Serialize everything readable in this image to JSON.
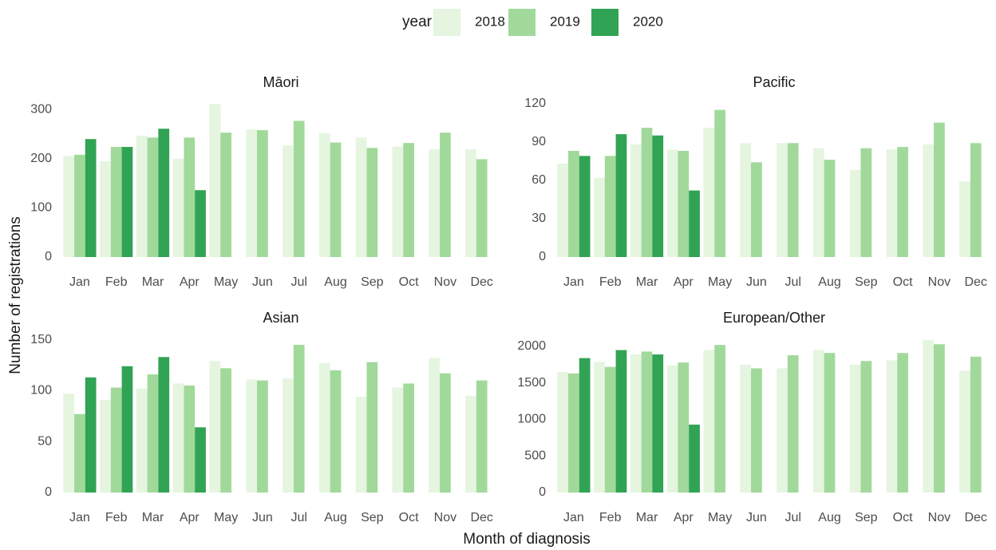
{
  "legend_title": "year",
  "x_label": "Month of diagnosis",
  "y_label": "Number of registrations",
  "chart_data": [
    {
      "type": "bar",
      "title": "Māori",
      "grid": false,
      "categories": [
        "Jan",
        "Feb",
        "Mar",
        "Apr",
        "May",
        "Jun",
        "Jul",
        "Aug",
        "Sep",
        "Oct",
        "Nov",
        "Dec"
      ],
      "series": [
        {
          "name": "2018",
          "color": "#e5f5e0",
          "values": [
            205,
            195,
            247,
            200,
            311,
            260,
            227,
            252,
            243,
            225,
            219,
            219
          ]
        },
        {
          "name": "2019",
          "color": "#a1d99b",
          "values": [
            208,
            224,
            243,
            243,
            253,
            258,
            277,
            233,
            222,
            232,
            253,
            199
          ]
        },
        {
          "name": "2020",
          "color": "#31a354",
          "values": [
            240,
            224,
            261,
            136,
            null,
            null,
            null,
            null,
            null,
            null,
            null,
            null
          ]
        }
      ],
      "ylim": [
        0,
        315
      ],
      "yticks": [
        0,
        100,
        200,
        300
      ]
    },
    {
      "type": "bar",
      "title": "Pacific",
      "grid": false,
      "categories": [
        "Jan",
        "Feb",
        "Mar",
        "Apr",
        "May",
        "Jun",
        "Jul",
        "Aug",
        "Sep",
        "Oct",
        "Nov",
        "Dec"
      ],
      "series": [
        {
          "name": "2018",
          "color": "#e5f5e0",
          "values": [
            73,
            62,
            88,
            84,
            101,
            89,
            89,
            85,
            68,
            84,
            88,
            59
          ]
        },
        {
          "name": "2019",
          "color": "#a1d99b",
          "values": [
            83,
            79,
            101,
            83,
            115,
            74,
            89,
            76,
            85,
            86,
            105,
            89
          ]
        },
        {
          "name": "2020",
          "color": "#31a354",
          "values": [
            79,
            96,
            95,
            52,
            null,
            null,
            null,
            null,
            null,
            null,
            null,
            null
          ]
        }
      ],
      "ylim": [
        0,
        121
      ],
      "yticks": [
        0,
        30,
        60,
        90,
        120
      ]
    },
    {
      "type": "bar",
      "title": "Asian",
      "grid": false,
      "categories": [
        "Jan",
        "Feb",
        "Mar",
        "Apr",
        "May",
        "Jun",
        "Jul",
        "Aug",
        "Sep",
        "Oct",
        "Nov",
        "Dec"
      ],
      "series": [
        {
          "name": "2018",
          "color": "#e5f5e0",
          "values": [
            97,
            91,
            102,
            107,
            129,
            111,
            112,
            127,
            94,
            103,
            132,
            95
          ]
        },
        {
          "name": "2019",
          "color": "#a1d99b",
          "values": [
            77,
            103,
            116,
            105,
            122,
            110,
            145,
            120,
            128,
            107,
            117,
            110
          ]
        },
        {
          "name": "2020",
          "color": "#31a354",
          "values": [
            113,
            124,
            133,
            64,
            null,
            null,
            null,
            null,
            null,
            null,
            null,
            null
          ]
        }
      ],
      "ylim": [
        0,
        152
      ],
      "yticks": [
        0,
        50,
        100,
        150
      ]
    },
    {
      "type": "bar",
      "title": "European/Other",
      "grid": false,
      "categories": [
        "Jan",
        "Feb",
        "Mar",
        "Apr",
        "May",
        "Jun",
        "Jul",
        "Aug",
        "Sep",
        "Oct",
        "Nov",
        "Dec"
      ],
      "series": [
        {
          "name": "2018",
          "color": "#e5f5e0",
          "values": [
            1650,
            1790,
            1890,
            1740,
            1950,
            1750,
            1700,
            1950,
            1750,
            1810,
            2090,
            1670
          ]
        },
        {
          "name": "2019",
          "color": "#a1d99b",
          "values": [
            1630,
            1720,
            1930,
            1780,
            2020,
            1700,
            1880,
            1910,
            1800,
            1910,
            2030,
            1860
          ]
        },
        {
          "name": "2020",
          "color": "#31a354",
          "values": [
            1840,
            1950,
            1890,
            930,
            null,
            null,
            null,
            null,
            null,
            null,
            null,
            null
          ]
        }
      ],
      "ylim": [
        0,
        2120
      ],
      "yticks": [
        0,
        500,
        1000,
        1500,
        2000
      ]
    }
  ]
}
